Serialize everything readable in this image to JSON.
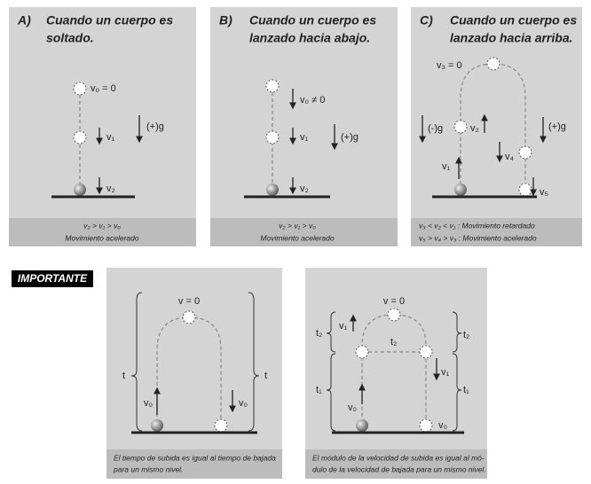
{
  "panels": [
    {
      "letter": "A)",
      "title": [
        "Cuando un cuerpo es",
        "soltado."
      ],
      "labels": [
        "v₀ = 0",
        "v₁",
        "v₂",
        "(+)g"
      ],
      "caption": [
        "v₂ > v₁ > v₀",
        "Movimiento acelerado"
      ]
    },
    {
      "letter": "B)",
      "title": [
        "Cuando un cuerpo es",
        "lanzado hacia abajo."
      ],
      "labels": [
        "v₀ ≠ 0",
        "v₁",
        "v₂",
        "(+)g"
      ],
      "caption": [
        "v₂ > v₁ > v₀",
        "Movimiento acelerado"
      ]
    },
    {
      "letter": "C)",
      "title": [
        "Cuando un cuerpo es",
        "lanzado hacia arriba."
      ],
      "labels": [
        "v₃ = 0",
        "(-)g",
        "v₂",
        "(+)g",
        "v₁",
        "v₄",
        "v₅"
      ],
      "caption": [
        "v₃ < v₂ < v₁ : Movimiento retardado",
        "v₅ > v₄ > v₃ : Movimiento acelerado"
      ]
    }
  ],
  "important": "IMPORTANTE",
  "cases": [
    {
      "labels": [
        "v = 0",
        "t",
        "t",
        "v₀",
        "v₀"
      ],
      "caption": [
        "El tiempo de subida es igual al tiempo de bajada",
        "para un mismo nivel."
      ]
    },
    {
      "labels": [
        "v = 0",
        "t₂",
        "v₁",
        "t₂",
        "t₂",
        "v₁",
        "t₁",
        "t₁",
        "v₀",
        "v₀"
      ],
      "caption": [
        "El módulo de la velocidad de subida es igual al mó-",
        "dulo de la velocidad de bajada para un mismo nivel."
      ]
    }
  ]
}
